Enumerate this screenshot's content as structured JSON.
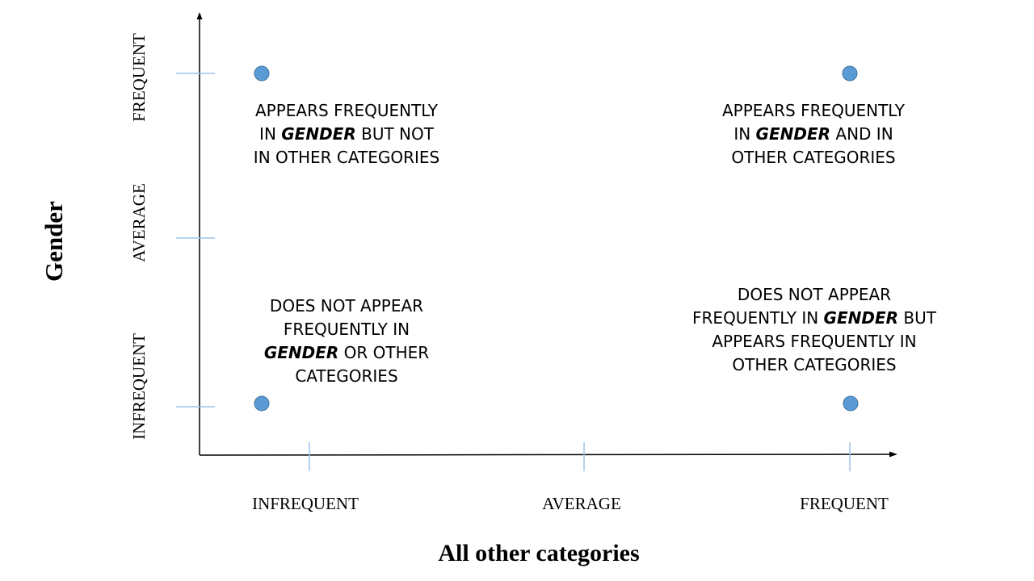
{
  "y_axis": {
    "title": "Gender",
    "ticks": [
      "INFREQUENT",
      "AVERAGE",
      "FREQUENT"
    ]
  },
  "x_axis": {
    "title": "All other categories",
    "ticks": [
      "INFREQUENT",
      "AVERAGE",
      "FREQUENT"
    ]
  },
  "points": [
    {
      "x": "INFREQUENT",
      "y": "FREQUENT"
    },
    {
      "x": "FREQUENT",
      "y": "FREQUENT"
    },
    {
      "x": "INFREQUENT",
      "y": "INFREQUENT"
    },
    {
      "x": "FREQUENT",
      "y": "INFREQUENT"
    }
  ],
  "annotations": {
    "top_left": [
      [
        "APPEARS FREQUENTLY"
      ],
      [
        "IN ",
        {
          "em": "GENDER"
        },
        " BUT NOT"
      ],
      [
        "IN OTHER CATEGORIES"
      ]
    ],
    "top_right": [
      [
        "APPEARS FREQUENTLY"
      ],
      [
        "IN ",
        {
          "em": "GENDER"
        },
        " AND IN"
      ],
      [
        "OTHER CATEGORIES"
      ]
    ],
    "bottom_left": [
      [
        "DOES NOT APPEAR"
      ],
      [
        "FREQUENTLY IN"
      ],
      [
        {
          "em": "GENDER"
        },
        " OR OTHER"
      ],
      [
        "CATEGORIES"
      ]
    ],
    "bottom_right": [
      [
        "DOES NOT APPEAR"
      ],
      [
        "FREQUENTLY IN ",
        {
          "em": "GENDER"
        },
        " BUT"
      ],
      [
        "APPEARS FREQUENTLY IN"
      ],
      [
        "OTHER CATEGORIES"
      ]
    ]
  },
  "colors": {
    "axis": "#000000",
    "tick": "#9DC3E6",
    "point": "#5B9BD5",
    "point_stroke": "#41719C"
  }
}
